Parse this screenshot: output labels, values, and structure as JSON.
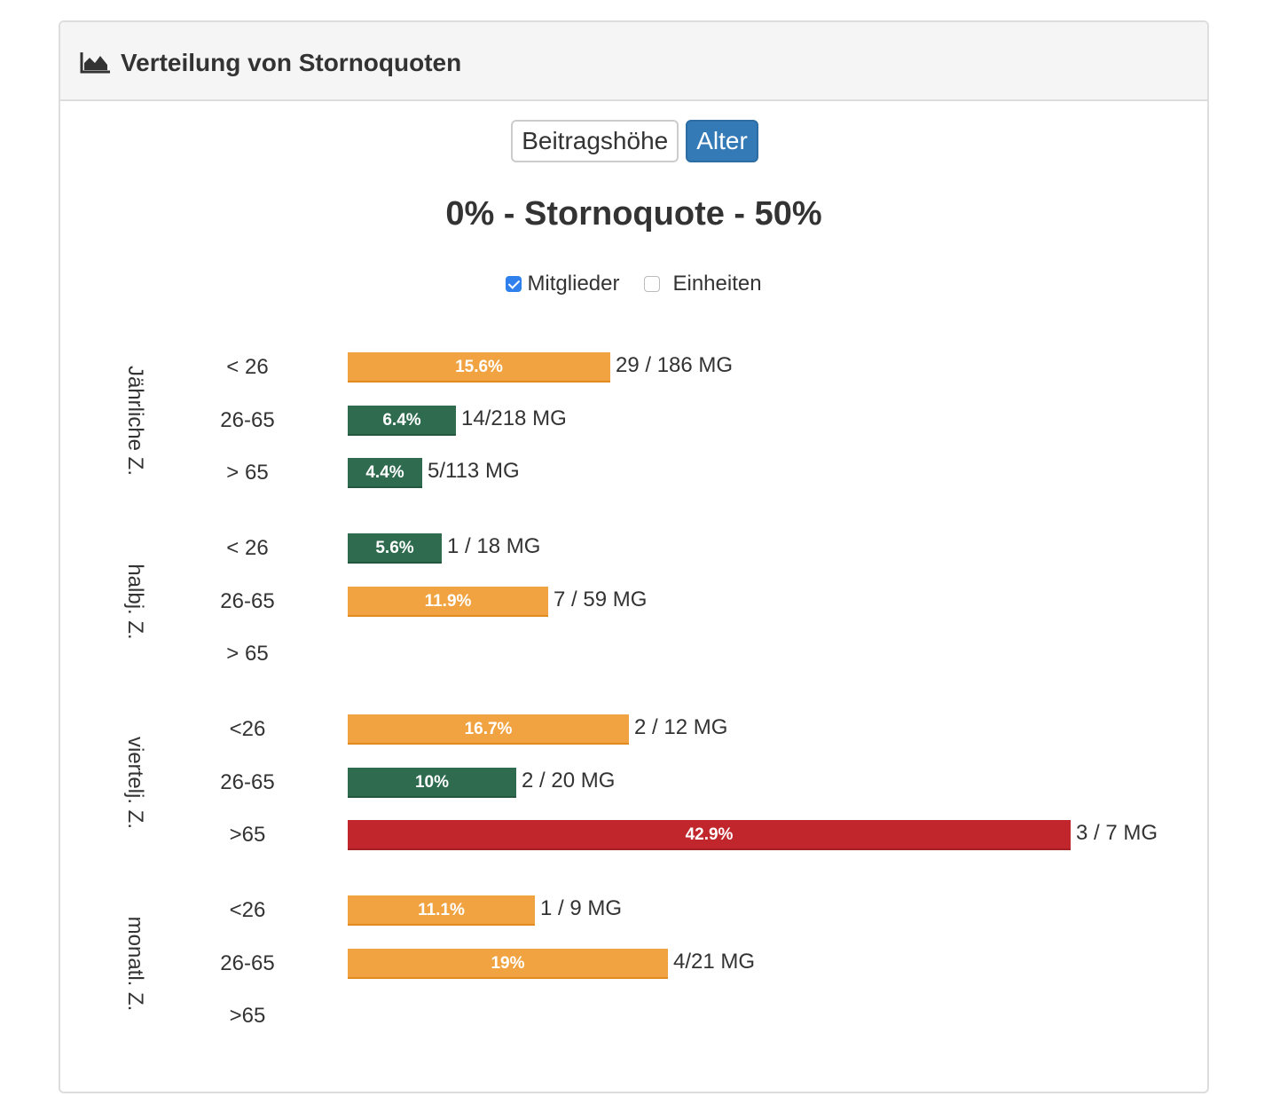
{
  "panel": {
    "title": "Verteilung von Stornoquoten",
    "icon": "area-chart-icon"
  },
  "toggle": {
    "buttons": [
      {
        "label": "Beitragshöhe",
        "active": false
      },
      {
        "label": "Alter",
        "active": true
      }
    ]
  },
  "range_title": "0% - Stornoquote - 50%",
  "checkboxes": [
    {
      "label": "Mitglieder",
      "checked": true
    },
    {
      "label": "Einheiten",
      "checked": false
    }
  ],
  "colors": {
    "high": "#c0262c",
    "medium": "#f0a340",
    "low": "#2f6b4f",
    "accent": "#337ab7"
  },
  "chart_data": {
    "type": "bar",
    "orientation": "horizontal",
    "title": "0% - Stornoquote - 50%",
    "xlim": [
      0,
      50
    ],
    "unit": "%",
    "groups": [
      {
        "label": "Jährliche Z.",
        "rows": [
          {
            "age": "< 26",
            "value": 15.6,
            "value_label": "15.6%",
            "count": "29 / 186 MG",
            "level": "medium"
          },
          {
            "age": "26-65",
            "value": 6.4,
            "value_label": "6.4%",
            "count": "14/218 MG",
            "level": "low"
          },
          {
            "age": "> 65",
            "value": 4.4,
            "value_label": "4.4%",
            "count": "5/113 MG",
            "level": "low"
          }
        ]
      },
      {
        "label": "halbj. Z.",
        "rows": [
          {
            "age": "< 26",
            "value": 5.6,
            "value_label": "5.6%",
            "count": "1 / 18 MG",
            "level": "low"
          },
          {
            "age": "26-65",
            "value": 11.9,
            "value_label": "11.9%",
            "count": "7 / 59 MG",
            "level": "medium"
          },
          {
            "age": "> 65",
            "value": null,
            "value_label": "",
            "count": "",
            "level": ""
          }
        ]
      },
      {
        "label": "viertelj. Z.",
        "rows": [
          {
            "age": "<26",
            "value": 16.7,
            "value_label": "16.7%",
            "count": "2 / 12 MG",
            "level": "medium"
          },
          {
            "age": "26-65",
            "value": 10,
            "value_label": "10%",
            "count": "2 / 20 MG",
            "level": "low"
          },
          {
            "age": ">65",
            "value": 42.9,
            "value_label": "42.9%",
            "count": "3 / 7 MG",
            "level": "high"
          }
        ]
      },
      {
        "label": "monatl. Z.",
        "rows": [
          {
            "age": "<26",
            "value": 11.1,
            "value_label": "11.1%",
            "count": "1 / 9 MG",
            "level": "medium"
          },
          {
            "age": "26-65",
            "value": 19,
            "value_label": "19%",
            "count": "4/21 MG",
            "level": "medium"
          },
          {
            "age": ">65",
            "value": null,
            "value_label": "",
            "count": "",
            "level": ""
          }
        ]
      }
    ]
  }
}
